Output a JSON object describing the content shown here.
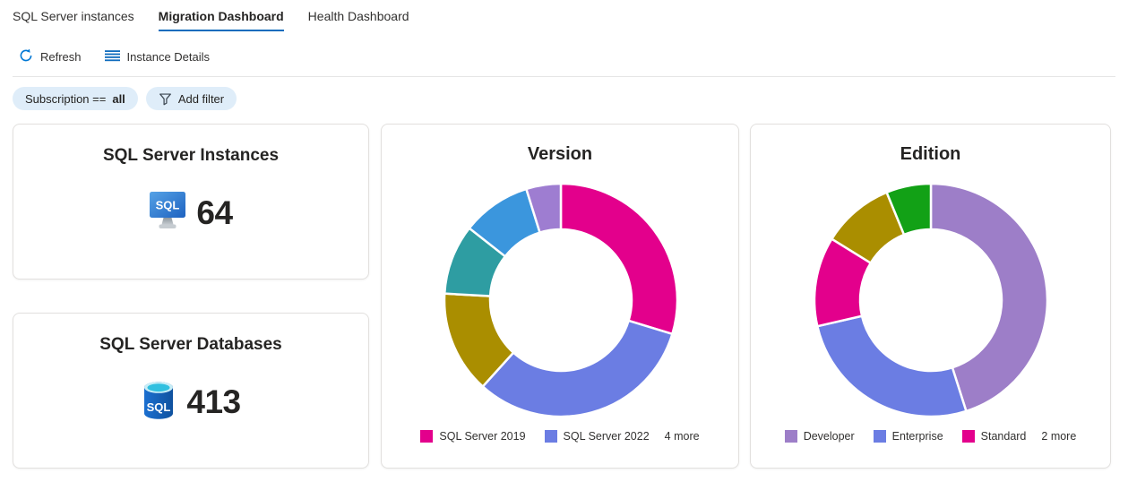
{
  "tabs": [
    {
      "label": "SQL Server instances",
      "active": false
    },
    {
      "label": "Migration Dashboard",
      "active": true
    },
    {
      "label": "Health Dashboard",
      "active": false
    }
  ],
  "toolbar": {
    "refresh_label": "Refresh",
    "refresh_icon": "refresh-icon",
    "instance_details_label": "Instance Details",
    "instance_details_icon": "horizontal-lines-icon"
  },
  "filters": {
    "subscription_label": "Subscription ==",
    "subscription_value": "all",
    "add_filter_label": "Add filter",
    "add_filter_icon": "filter-funnel-icon"
  },
  "stats": [
    {
      "title": "SQL Server Instances",
      "value": "64",
      "icon": "sql-server-monitor-icon"
    },
    {
      "title": "SQL Server Databases",
      "value": "413",
      "icon": "sql-database-icon"
    }
  ],
  "colors": {
    "accent_blue": "#0F6CBD",
    "icon_blue": "#0078D4",
    "pill_background": "#DFEDF9",
    "card_border": "#E2E0DE",
    "magenta": "#E3008C",
    "periwinkle": "#6B7DE3",
    "gold": "#AA8E00",
    "teal": "#2E9DA2",
    "blue": "#3B96DD",
    "purple": "#9D7EC8",
    "green": "#12A116"
  },
  "chart_data": [
    {
      "type": "donut",
      "title": "Version",
      "legend_position": "bottom",
      "slices": [
        {
          "label": "SQL Server 2019",
          "color": "#E3008C",
          "percent": 29.7
        },
        {
          "label": "SQL Server 2022",
          "color": "#6B7DE3",
          "percent": 32.0
        },
        {
          "label": null,
          "color": "#AA8E00",
          "percent": 14.2
        },
        {
          "label": null,
          "color": "#2E9DA2",
          "percent": 9.7
        },
        {
          "label": null,
          "color": "#3B96DD",
          "percent": 9.6
        },
        {
          "label": null,
          "color": "#9E7DD1",
          "percent": 4.8
        }
      ],
      "legend_visible": [
        "SQL Server 2019",
        "SQL Server 2022"
      ],
      "legend_more_label": "4 more"
    },
    {
      "type": "donut",
      "title": "Edition",
      "legend_position": "bottom",
      "slices": [
        {
          "label": "Developer",
          "color": "#9D7EC8",
          "percent": 45.1
        },
        {
          "label": "Enterprise",
          "color": "#6B7DE3",
          "percent": 26.3
        },
        {
          "label": "Standard",
          "color": "#E3008C",
          "percent": 12.4
        },
        {
          "label": null,
          "color": "#AA8E00",
          "percent": 10.0
        },
        {
          "label": null,
          "color": "#12A116",
          "percent": 6.2
        }
      ],
      "legend_visible": [
        "Developer",
        "Enterprise",
        "Standard"
      ],
      "legend_more_label": "2 more"
    }
  ]
}
